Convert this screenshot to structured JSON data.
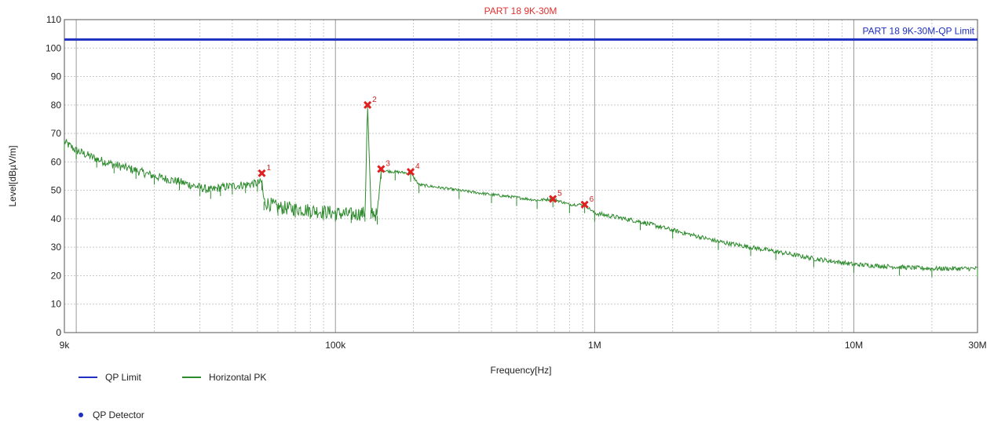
{
  "chart_data": {
    "type": "line",
    "title": "PART 18  9K-30M",
    "xlabel": "Frequency[Hz]",
    "ylabel": "Level[dBµV/m]",
    "xscale": "log",
    "xlim": [
      9000,
      30000000
    ],
    "ylim": [
      0,
      110
    ],
    "grid": true,
    "x_ticks": [
      {
        "value": 9000,
        "label": "9k"
      },
      {
        "value": 100000,
        "label": "100k"
      },
      {
        "value": 1000000,
        "label": "1M"
      },
      {
        "value": 10000000,
        "label": "10M"
      },
      {
        "value": 30000000,
        "label": "30M"
      }
    ],
    "y_ticks": [
      0,
      10,
      20,
      30,
      40,
      50,
      60,
      70,
      80,
      90,
      100,
      110
    ],
    "limit": {
      "name": "QP Limit",
      "label": "PART 18  9K-30M-QP Limit",
      "value": 103,
      "color": "#1f2fbf"
    },
    "series": [
      {
        "name": "Horizontal PK",
        "color": "#2e8b2e",
        "points": [
          [
            9000,
            67
          ],
          [
            10000,
            64
          ],
          [
            12000,
            61
          ],
          [
            14000,
            59
          ],
          [
            17000,
            57
          ],
          [
            20000,
            55
          ],
          [
            25000,
            53
          ],
          [
            30000,
            51
          ],
          [
            33000,
            50
          ],
          [
            36000,
            51
          ],
          [
            40000,
            51.5
          ],
          [
            45000,
            52
          ],
          [
            50000,
            52.5
          ],
          [
            52000,
            53
          ],
          [
            53000,
            46
          ],
          [
            60000,
            44
          ],
          [
            70000,
            43.5
          ],
          [
            80000,
            43
          ],
          [
            90000,
            42.5
          ],
          [
            100000,
            42
          ],
          [
            115000,
            41.5
          ],
          [
            130000,
            42
          ],
          [
            133000,
            80
          ],
          [
            137000,
            43
          ],
          [
            145000,
            41
          ],
          [
            150000,
            57
          ],
          [
            170000,
            56.5
          ],
          [
            195000,
            56
          ],
          [
            210000,
            52
          ],
          [
            300000,
            50
          ],
          [
            400000,
            48.5
          ],
          [
            500000,
            47.5
          ],
          [
            600000,
            46.5
          ],
          [
            690000,
            47
          ],
          [
            800000,
            45
          ],
          [
            915000,
            45
          ],
          [
            1000000,
            42
          ],
          [
            1500000,
            39
          ],
          [
            2000000,
            36
          ],
          [
            3000000,
            32
          ],
          [
            4000000,
            30
          ],
          [
            5000000,
            28.5
          ],
          [
            7000000,
            26
          ],
          [
            10000000,
            24
          ],
          [
            15000000,
            23
          ],
          [
            20000000,
            22.5
          ],
          [
            30000000,
            22.5
          ]
        ]
      }
    ],
    "markers": [
      {
        "label": "1",
        "x": 52000,
        "y": 56
      },
      {
        "label": "2",
        "x": 133000,
        "y": 80
      },
      {
        "label": "3",
        "x": 150000,
        "y": 57.5
      },
      {
        "label": "4",
        "x": 195000,
        "y": 56.5
      },
      {
        "label": "5",
        "x": 690000,
        "y": 47
      },
      {
        "label": "6",
        "x": 915000,
        "y": 45
      }
    ],
    "legend": {
      "position": "bottom-left",
      "items": [
        {
          "label": "QP Limit",
          "color": "#1f2fbf",
          "kind": "line"
        },
        {
          "label": "Horizontal PK",
          "color": "#2e8b2e",
          "kind": "line"
        },
        {
          "label": "QP Detector",
          "color": "#1f2fbf",
          "kind": "dot"
        }
      ]
    }
  }
}
